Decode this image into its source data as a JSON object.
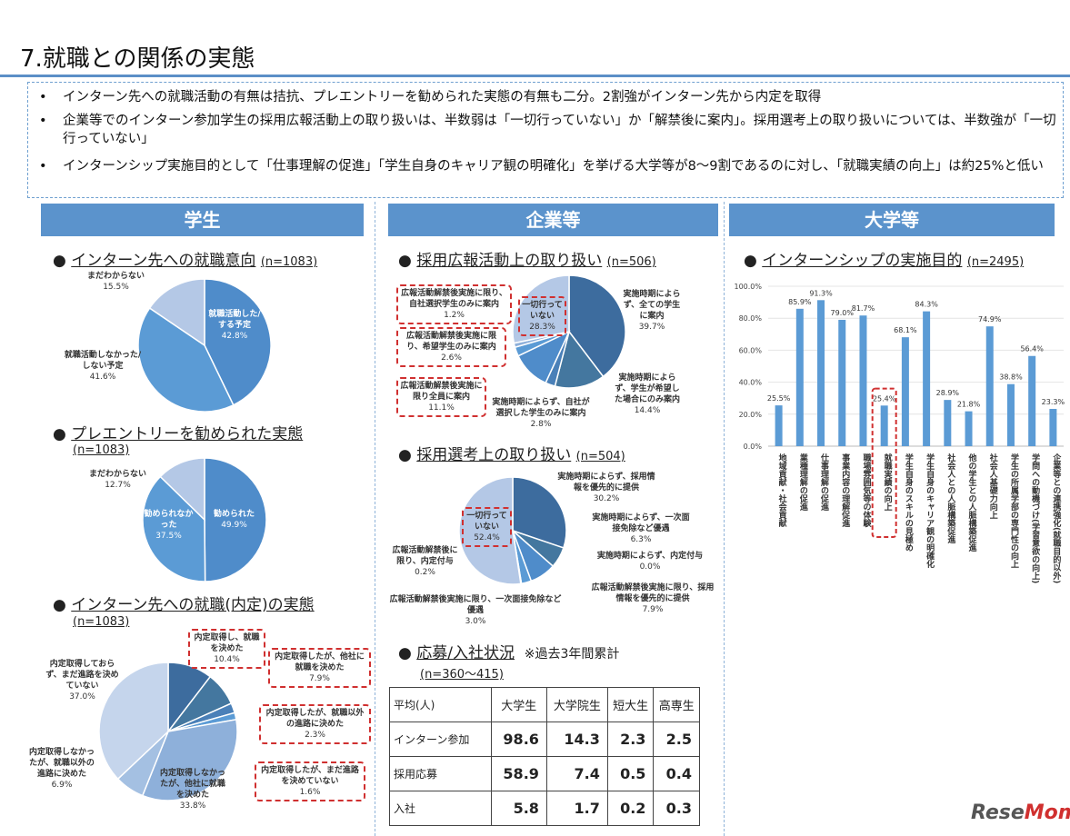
{
  "title": "7.就職との関係の実態",
  "summary": [
    "インターン先への就職活動の有無は拮抗、プレエントリーを勧められた実態の有無も二分。2割強がインターン先から内定を取得",
    "企業等でのインターン参加学生の採用広報活動上の取り扱いは、半数弱は「一切行っていない」か「解禁後に案内」。採用選考上の取り扱いについては、半数強が「一切行っていない」",
    "インターンシップ実施目的として「仕事理解の促進」「学生自身のキャリア観の明確化」を挙げる大学等が8〜9割であるのに対し、「就職実績の向上」は約25%と低い"
  ],
  "columns": [
    "学生",
    "企業等",
    "大学等"
  ],
  "sections": {
    "s1": {
      "title": "インターン先への就職意向",
      "n": "(n=1083)"
    },
    "s2": {
      "title": "プレエントリーを勧められた実態",
      "n": "(n=1083)"
    },
    "s3": {
      "title": "インターン先への就職(内定)の実態",
      "n": "(n=1083)"
    },
    "c1": {
      "title": "採用広報活動上の取り扱い",
      "n": "(n=506)"
    },
    "c2": {
      "title": "採用選考上の取り扱い",
      "n": "(n=504)"
    },
    "c3": {
      "title": "応募/入社状況",
      "note": "※過去3年間累計",
      "n": "(n=360〜415)"
    },
    "u1": {
      "title": "インターンシップの実施目的",
      "n": "(n=2495)"
    }
  },
  "colors": {
    "dark": "#3d6c9e",
    "mid": "#4f8cca",
    "mid2": "#5b9bd5",
    "light": "#b4c8e6",
    "bar": "#5b9bd5",
    "accent": "#d03030"
  },
  "chart_data": [
    {
      "type": "pie",
      "id": "p1",
      "slices": [
        {
          "label": "就職活動した/する予定",
          "value": 42.8,
          "pct": "42.8%",
          "color": "#4f8cca"
        },
        {
          "label": "就職活動しなかった/しない予定",
          "value": 41.6,
          "pct": "41.6%",
          "color": "#5b9bd5"
        },
        {
          "label": "まだわからない",
          "value": 15.5,
          "pct": "15.5%",
          "color": "#b4c8e6"
        }
      ]
    },
    {
      "type": "pie",
      "id": "p2",
      "slices": [
        {
          "label": "勧められた",
          "value": 49.9,
          "pct": "49.9%",
          "color": "#4f8cca"
        },
        {
          "label": "勧められなかった",
          "value": 37.5,
          "pct": "37.5%",
          "color": "#5b9bd5"
        },
        {
          "label": "まだわからない",
          "value": 12.7,
          "pct": "12.7%",
          "color": "#b4c8e6"
        }
      ]
    },
    {
      "type": "pie",
      "id": "p3",
      "slices": [
        {
          "label": "内定取得し、就職を決めた",
          "value": 10.4,
          "pct": "10.4%",
          "color": "#3d6c9e"
        },
        {
          "label": "内定取得したが、他社に就職を決めた",
          "value": 7.9,
          "pct": "7.9%",
          "color": "#44779f"
        },
        {
          "label": "内定取得したが、就職以外の進路に決めた",
          "value": 2.3,
          "pct": "2.3%",
          "color": "#4a80b8"
        },
        {
          "label": "内定取得したが、まだ進路を決めていない",
          "value": 1.6,
          "pct": "1.6%",
          "color": "#5b9bd5"
        },
        {
          "label": "内定取得しなかったが、他社に就職を決めた",
          "value": 33.8,
          "pct": "33.8%",
          "color": "#8eb0da"
        },
        {
          "label": "内定取得しなかったが、就職以外の進路に決めた",
          "value": 6.9,
          "pct": "6.9%",
          "color": "#a4c0e2"
        },
        {
          "label": "内定取得しておらず、まだ進路を決めていない",
          "value": 37.0,
          "pct": "37.0%",
          "color": "#c5d5ec"
        }
      ]
    },
    {
      "type": "pie",
      "id": "p4",
      "slices": [
        {
          "label": "実施時期によらず、全ての学生に案内",
          "value": 39.7,
          "pct": "39.7%",
          "color": "#3d6c9e"
        },
        {
          "label": "実施時期によらず、学生が希望した場合にのみ案内",
          "value": 14.4,
          "pct": "14.4%",
          "color": "#44779f"
        },
        {
          "label": "実施時期によらず、自社が選択した学生のみに案内",
          "value": 2.8,
          "pct": "2.8%",
          "color": "#4a80b8"
        },
        {
          "label": "広報活動解禁後実施に限り全員に案内",
          "value": 11.1,
          "pct": "11.1%",
          "color": "#4f8cca"
        },
        {
          "label": "広報活動解禁後実施に限り、希望学生のみに案内",
          "value": 2.6,
          "pct": "2.6%",
          "color": "#5b9bd5"
        },
        {
          "label": "広報活動解禁後実施に限り、自社選択学生のみに案内",
          "value": 1.2,
          "pct": "1.2%",
          "color": "#8eb0da"
        },
        {
          "label": "一切行っていない",
          "value": 28.3,
          "pct": "28.3%",
          "color": "#b4c8e6"
        }
      ]
    },
    {
      "type": "pie",
      "id": "p5",
      "slices": [
        {
          "label": "実施時期によらず、採用情報を優先的に提供",
          "value": 30.2,
          "pct": "30.2%",
          "color": "#3d6c9e"
        },
        {
          "label": "実施時期によらず、一次面接免除など優遇",
          "value": 6.3,
          "pct": "6.3%",
          "color": "#44779f"
        },
        {
          "label": "実施時期によらず、内定付与",
          "value": 0.0,
          "pct": "0.0%",
          "color": "#4a80b8"
        },
        {
          "label": "広報活動解禁後実施に限り、採用情報を優先的に提供",
          "value": 7.9,
          "pct": "7.9%",
          "color": "#4f8cca"
        },
        {
          "label": "広報活動解禁後実施に限り、一次面接免除など優遇",
          "value": 3.0,
          "pct": "3.0%",
          "color": "#5b9bd5"
        },
        {
          "label": "広報活動解禁後に限り、内定付与",
          "value": 0.2,
          "pct": "0.2%",
          "color": "#8eb0da"
        },
        {
          "label": "一切行っていない",
          "value": 52.4,
          "pct": "52.4%",
          "color": "#b4c8e6"
        }
      ]
    },
    {
      "type": "bar",
      "id": "b1",
      "ylim": [
        0,
        100
      ],
      "yticks": [
        "0.0%",
        "20.0%",
        "40.0%",
        "60.0%",
        "80.0%",
        "100.0%"
      ],
      "categories": [
        "地域貢献・社会貢献",
        "業種理解の促進",
        "仕事理解の促進",
        "事業内容の理解促進",
        "職場雰囲気等の体験",
        "就職実績の向上",
        "学生自身のスキルの見極め",
        "学生自身のキャリア観の明確化",
        "社会人との人脈構築促進",
        "他の学生との人脈構築促進",
        "社会人基礎力向上",
        "学生の所属学部の専門性の向上",
        "学問への動機づけ(学習意欲の向上)",
        "企業等との連携強化(就職目的以外)"
      ],
      "values": [
        25.5,
        85.9,
        91.3,
        79.0,
        81.7,
        25.4,
        68.1,
        84.3,
        28.9,
        21.8,
        74.9,
        38.8,
        56.4,
        23.3
      ],
      "labels": [
        "25.5%",
        "85.9%",
        "91.3%",
        "79.0%",
        "81.7%",
        "25.4%",
        "68.1%",
        "84.3%",
        "28.9%",
        "21.8%",
        "74.9%",
        "38.8%",
        "56.4%",
        "23.3%"
      ],
      "highlight": 5
    }
  ],
  "table": {
    "headers": [
      "平均(人)",
      "大学生",
      "大学院生",
      "短大生",
      "高専生"
    ],
    "rows": [
      [
        "インターン参加",
        "98.6",
        "14.3",
        "2.3",
        "2.5"
      ],
      [
        "採用応募",
        "58.9",
        "7.4",
        "0.5",
        "0.4"
      ],
      [
        "入社",
        "5.8",
        "1.7",
        "0.2",
        "0.3"
      ]
    ]
  },
  "logo": {
    "text1": "Rese",
    "text2": "Mom"
  }
}
